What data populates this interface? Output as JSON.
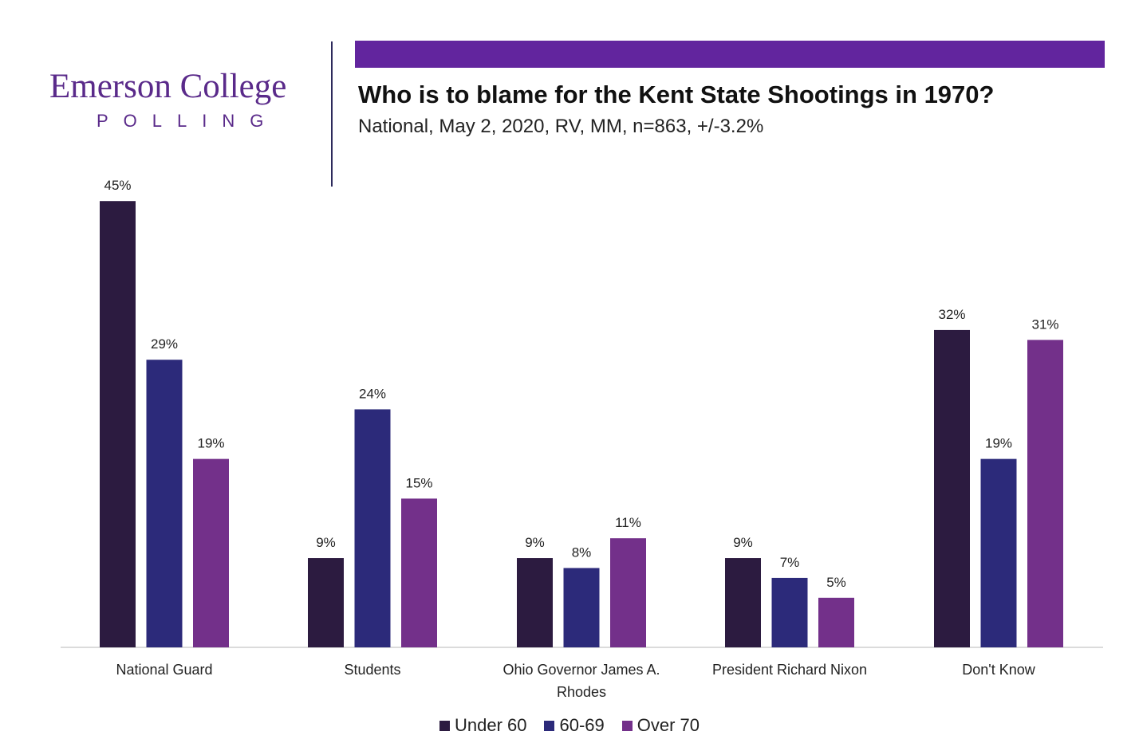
{
  "logo": {
    "name": "Emerson College",
    "tagline": "POLLING"
  },
  "colors": {
    "brand_purple": "#5a2a8a",
    "accent_bar": "#62259e",
    "under_60": "#2c1b40",
    "age_60_69": "#2c2a7a",
    "over_70": "#73308a"
  },
  "chart_data": {
    "type": "bar",
    "title": "Who is to blame for the Kent State Shootings in 1970?",
    "subtitle": "National, May 2, 2020, RV, MM, n=863, +/-3.2%",
    "categories": [
      [
        "National Guard"
      ],
      [
        "Students"
      ],
      [
        "Ohio Governor James A.",
        "Rhodes"
      ],
      [
        "President Richard Nixon"
      ],
      [
        "Don't Know"
      ]
    ],
    "series": [
      {
        "name": "Under 60",
        "values": [
          45,
          9,
          9,
          9,
          32
        ],
        "labels": [
          "45%",
          "9%",
          "9%",
          "9%",
          "32%"
        ]
      },
      {
        "name": "60-69",
        "values": [
          29,
          24,
          8,
          7,
          19
        ],
        "labels": [
          "29%",
          "24%",
          "8%",
          "7%",
          "19%"
        ]
      },
      {
        "name": "Over 70",
        "values": [
          19,
          15,
          11,
          5,
          31
        ],
        "labels": [
          "19%",
          "15%",
          "11%",
          "5%",
          "31%"
        ]
      }
    ],
    "xlabel": "",
    "ylabel": "",
    "ylim": [
      0,
      45
    ],
    "grid": false,
    "legend_position": "bottom-center"
  }
}
